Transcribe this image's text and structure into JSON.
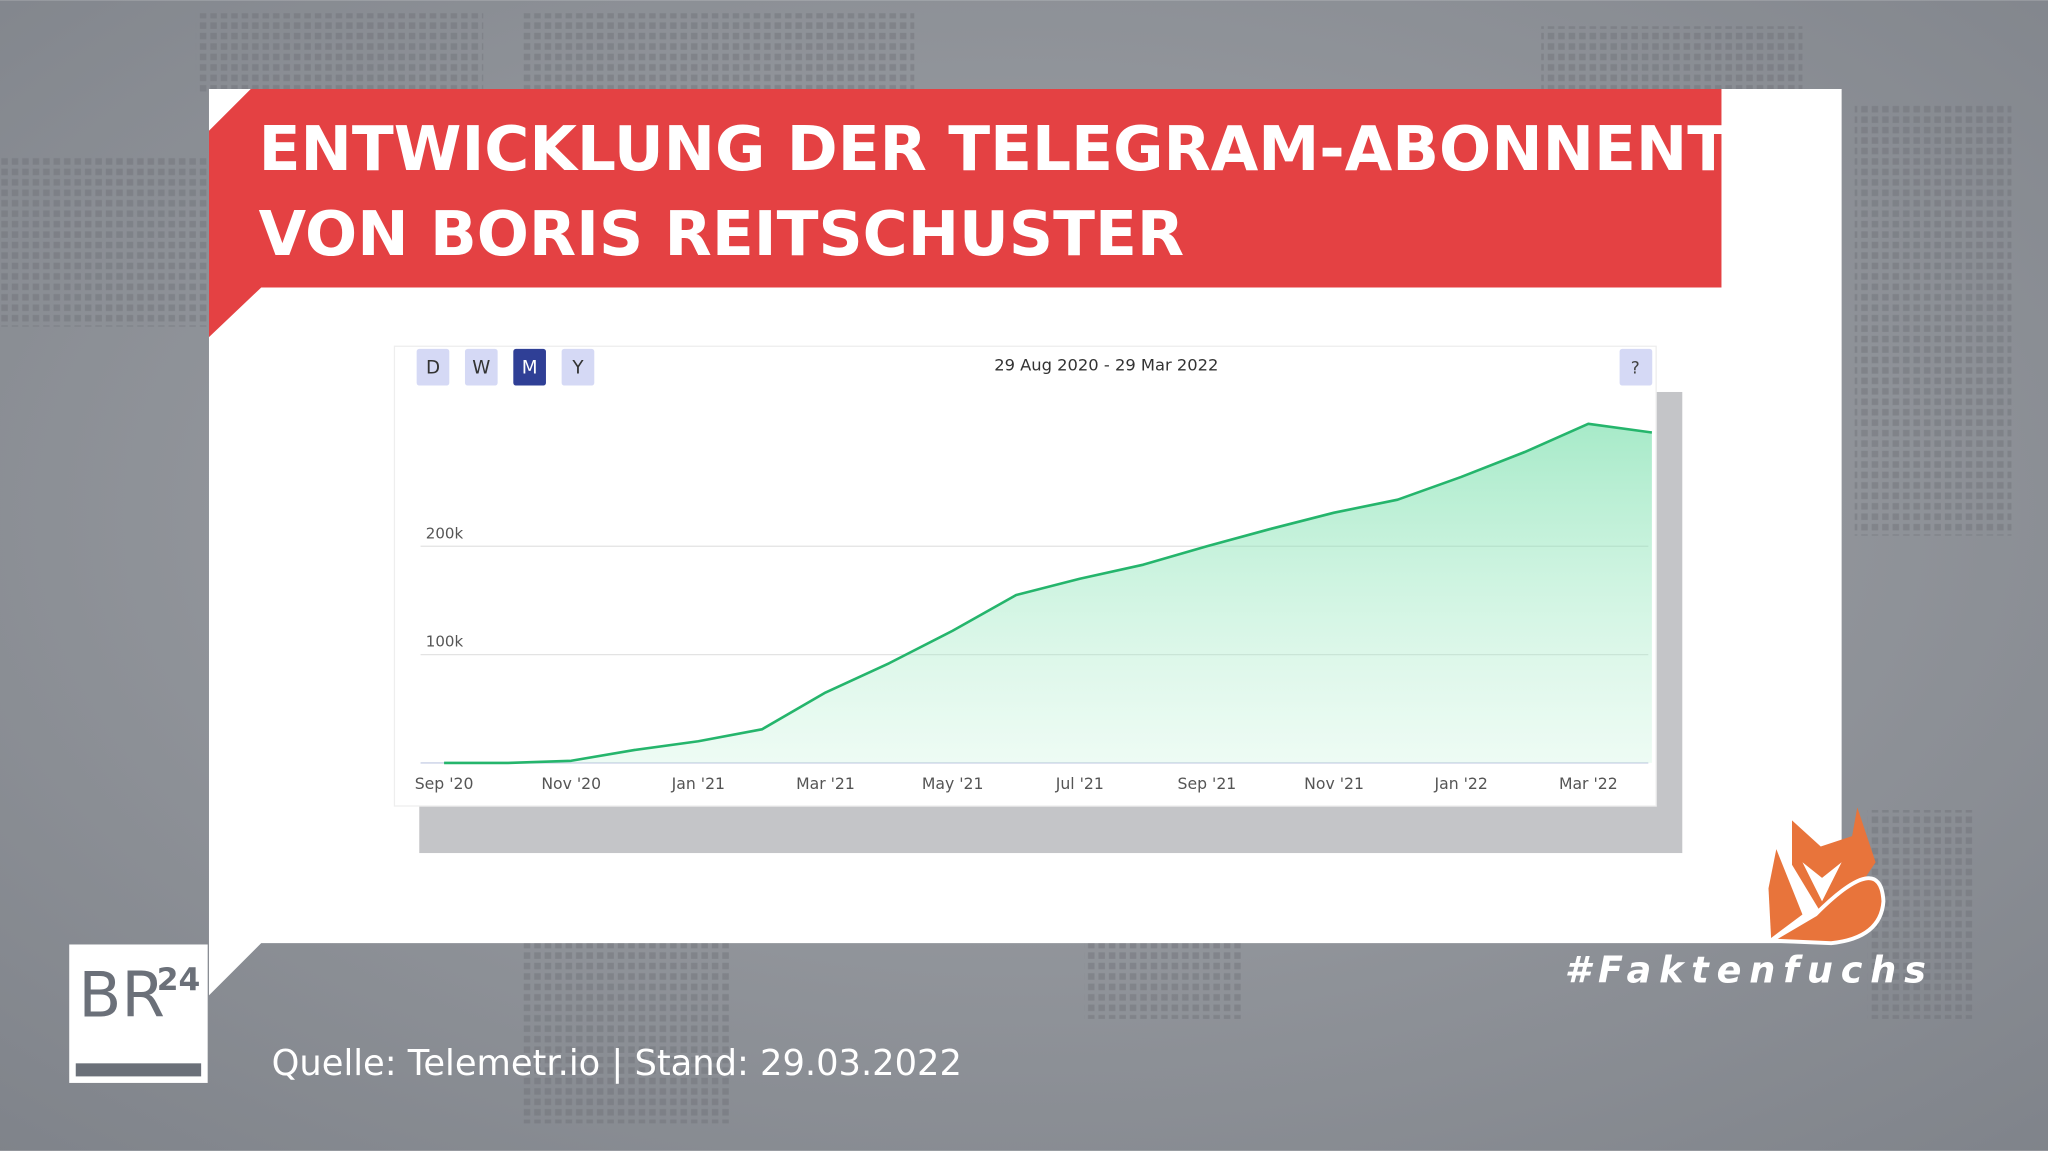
{
  "header": {
    "title_lines": [
      "ENTWICKLUNG DER TELEGRAM-ABONNENTEN",
      "VON BORIS REITSCHUSTER"
    ]
  },
  "chart_data": {
    "type": "area",
    "period_buttons": [
      "D",
      "W",
      "M",
      "Y"
    ],
    "active_button": "M",
    "date_range": "29 Aug 2020 - 29 Mar 2022",
    "help": "?",
    "categories": [
      "Sep '20",
      null,
      "Nov '20",
      null,
      "Jan '21",
      null,
      "Mar '21",
      null,
      "May '21",
      null,
      "Jul '21",
      null,
      "Sep '21",
      null,
      "Nov '21",
      null,
      "Jan '22",
      null,
      "Mar '22",
      null
    ],
    "values": [
      0,
      0,
      2000,
      12000,
      20000,
      31000,
      65000,
      92000,
      122000,
      155000,
      170000,
      183000,
      200000,
      216000,
      231000,
      243000,
      264000,
      287000,
      313000,
      305000
    ],
    "color": "#25b56c",
    "ylim": [
      0,
      340000
    ],
    "yticks": [
      {
        "value": 100000,
        "label": "100k"
      },
      {
        "value": 200000,
        "label": "200k"
      }
    ],
    "grid": true
  },
  "footer": {
    "source": "Quelle: Telemetr.io | Stand: 29.03.2022",
    "hashtag": "#Faktenfuchs",
    "logo": {
      "main": "BR",
      "sup": "24"
    }
  }
}
